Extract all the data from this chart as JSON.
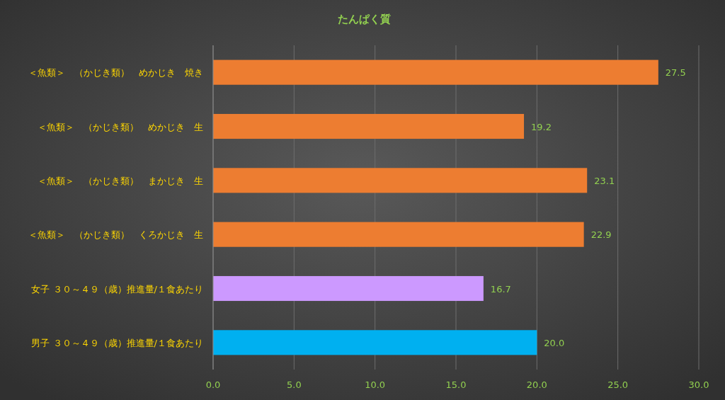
{
  "chart_data": {
    "type": "bar",
    "orientation": "horizontal",
    "title": "たんぱく質",
    "categories": [
      "＜魚類＞　（かじき類）　めかじき　焼き",
      "＜魚類＞　（かじき類）　めかじき　生",
      "＜魚類＞　（かじき類）　まかじき　生",
      "＜魚類＞　（かじき類）　くろかじき　生",
      "女子 ３０～４９（歳）推進量/１食あたり",
      "男子 ３０～４９（歳）推進量/１食あたり"
    ],
    "values": [
      27.5,
      19.2,
      23.1,
      22.9,
      16.7,
      20.0
    ],
    "value_labels": [
      "27.5",
      "19.2",
      "23.1",
      "22.9",
      "16.7",
      "20.0"
    ],
    "colors": [
      "#ed7d31",
      "#ed7d31",
      "#ed7d31",
      "#ed7d31",
      "#cc99ff",
      "#00b0f0"
    ],
    "xlim": [
      0,
      30
    ],
    "xticks": [
      {
        "value": 0,
        "label": "0.0"
      },
      {
        "value": 5,
        "label": "5.0"
      },
      {
        "value": 10,
        "label": "10.0"
      },
      {
        "value": 15,
        "label": "15.0"
      },
      {
        "value": 20,
        "label": "20.0"
      },
      {
        "value": 25,
        "label": "25.0"
      },
      {
        "value": 30,
        "label": "30.0"
      }
    ],
    "grid": "x"
  }
}
